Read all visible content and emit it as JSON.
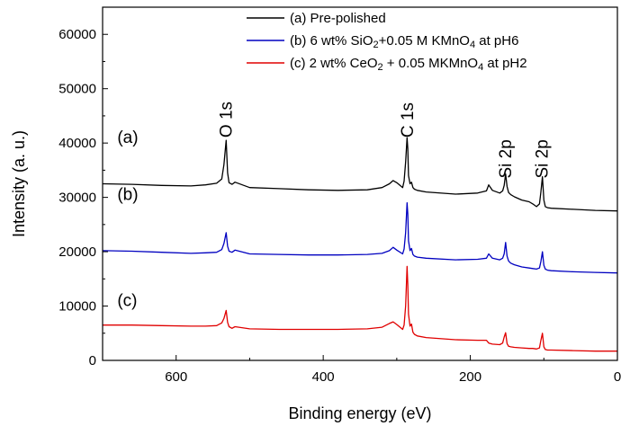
{
  "chart_data": {
    "type": "line",
    "xlabel": "Binding energy (eV)",
    "ylabel": "Intensity (a. u.)",
    "xlim": [
      700,
      0
    ],
    "ylim": [
      0,
      65000
    ],
    "x_reversed": true,
    "x_ticks": [
      600,
      400,
      200,
      0
    ],
    "y_ticks": [
      0,
      10000,
      20000,
      30000,
      40000,
      50000,
      60000
    ],
    "grid": false,
    "legend_position": "top-right",
    "legend": [
      {
        "text": "(a) Pre-polished",
        "color": "#000000"
      },
      {
        "parts": [
          {
            "t": "(b) 6 wt% SiO"
          },
          {
            "t": "2",
            "sub": true
          },
          {
            "t": "+0.05 M KMnO"
          },
          {
            "t": "4",
            "sub": true
          },
          {
            "t": " at pH6"
          }
        ],
        "color": "#0000c0"
      },
      {
        "parts": [
          {
            "t": "(c) 2 wt% CeO"
          },
          {
            "t": "2",
            "sub": true
          },
          {
            "t": " + 0.05 MKMnO"
          },
          {
            "t": "4",
            "sub": true
          },
          {
            "t": " at pH2"
          }
        ],
        "color": "#e00000"
      }
    ],
    "annotations": [
      {
        "text": "O 1s",
        "x": 532,
        "y": 41000,
        "rotate": true
      },
      {
        "text": "C 1s",
        "x": 285,
        "y": 41000,
        "rotate": true
      },
      {
        "text": "Si 2p",
        "x": 152,
        "y": 33500,
        "rotate": true
      },
      {
        "text": "Si 2p",
        "x": 102,
        "y": 33500,
        "rotate": true
      }
    ],
    "series_tags": [
      {
        "text": "(a)",
        "x": 680,
        "y": 40000
      },
      {
        "text": "(b)",
        "x": 680,
        "y": 29500
      },
      {
        "text": "(c)",
        "x": 680,
        "y": 10000
      }
    ],
    "series": [
      {
        "name": "(a) Pre-polished",
        "color": "#000000",
        "x": [
          700,
          660,
          620,
          580,
          560,
          545,
          538,
          535,
          532,
          530,
          528,
          524,
          520,
          500,
          460,
          420,
          380,
          340,
          320,
          310,
          305,
          300,
          292,
          290,
          288,
          286,
          285,
          284,
          282,
          280,
          278,
          276,
          272,
          260,
          220,
          190,
          178,
          175,
          170,
          160,
          156,
          154,
          152,
          150,
          148,
          145,
          140,
          130,
          120,
          115,
          110,
          106,
          104,
          102,
          100,
          98,
          95,
          90,
          60,
          30,
          0
        ],
        "y": [
          32500,
          32400,
          32200,
          32100,
          32300,
          32600,
          33400,
          36000,
          40500,
          34500,
          32700,
          32400,
          32800,
          31800,
          31600,
          31400,
          31300,
          31400,
          31800,
          32500,
          33100,
          32700,
          31800,
          33000,
          36500,
          41000,
          39000,
          34000,
          32500,
          32800,
          31800,
          31500,
          31300,
          31000,
          30600,
          30800,
          31200,
          32300,
          31300,
          30800,
          31200,
          32200,
          34300,
          32000,
          30900,
          30500,
          30100,
          29500,
          29200,
          28800,
          28300,
          28800,
          31000,
          33800,
          29500,
          28300,
          28100,
          28000,
          27800,
          27600,
          27500
        ]
      },
      {
        "name": "(b) 6 wt% SiO2+0.05 M KMnO4 at pH6",
        "color": "#0000c0",
        "x": [
          700,
          660,
          620,
          580,
          560,
          545,
          538,
          535,
          532,
          530,
          528,
          524,
          520,
          500,
          460,
          420,
          380,
          340,
          320,
          310,
          305,
          300,
          292,
          290,
          288,
          286,
          285,
          284,
          282,
          280,
          278,
          276,
          272,
          260,
          220,
          190,
          178,
          175,
          170,
          160,
          156,
          154,
          152,
          150,
          148,
          145,
          140,
          130,
          120,
          115,
          110,
          106,
          104,
          102,
          100,
          98,
          95,
          90,
          60,
          30,
          0
        ],
        "y": [
          20200,
          20100,
          19900,
          19700,
          19800,
          19900,
          20400,
          21500,
          23500,
          21000,
          20100,
          19900,
          20300,
          19600,
          19500,
          19400,
          19400,
          19500,
          19700,
          20200,
          20800,
          20300,
          19600,
          20500,
          23500,
          29000,
          27000,
          22000,
          20200,
          20600,
          19500,
          19200,
          19000,
          18800,
          18500,
          18600,
          18800,
          19600,
          18800,
          18500,
          18800,
          19600,
          21700,
          19200,
          18300,
          17900,
          17600,
          17200,
          17000,
          16900,
          16800,
          17000,
          18200,
          20000,
          17500,
          16800,
          16600,
          16500,
          16300,
          16200,
          16100
        ]
      },
      {
        "name": "(c) 2 wt% CeO2 + 0.05 MKMnO4 at pH2",
        "color": "#e00000",
        "x": [
          700,
          660,
          620,
          580,
          560,
          545,
          538,
          535,
          532,
          530,
          528,
          524,
          520,
          500,
          460,
          420,
          380,
          340,
          320,
          310,
          305,
          300,
          292,
          290,
          288,
          286,
          285,
          284,
          282,
          280,
          278,
          276,
          272,
          260,
          220,
          190,
          178,
          175,
          170,
          160,
          156,
          154,
          152,
          150,
          148,
          145,
          140,
          130,
          120,
          115,
          110,
          106,
          104,
          102,
          100,
          98,
          95,
          90,
          60,
          30,
          0
        ],
        "y": [
          6500,
          6500,
          6400,
          6300,
          6300,
          6400,
          6900,
          7700,
          9200,
          7000,
          6200,
          5900,
          6200,
          5800,
          5700,
          5700,
          5700,
          5800,
          6100,
          6800,
          7100,
          6600,
          5700,
          6500,
          10000,
          17300,
          14000,
          8500,
          6300,
          6700,
          5200,
          4800,
          4500,
          4200,
          3800,
          3700,
          3700,
          3200,
          3000,
          2900,
          3200,
          4300,
          5100,
          3100,
          2600,
          2500,
          2400,
          2300,
          2200,
          2200,
          2100,
          2300,
          3700,
          5000,
          2500,
          2000,
          1900,
          1900,
          1800,
          1700,
          1700
        ]
      }
    ]
  }
}
